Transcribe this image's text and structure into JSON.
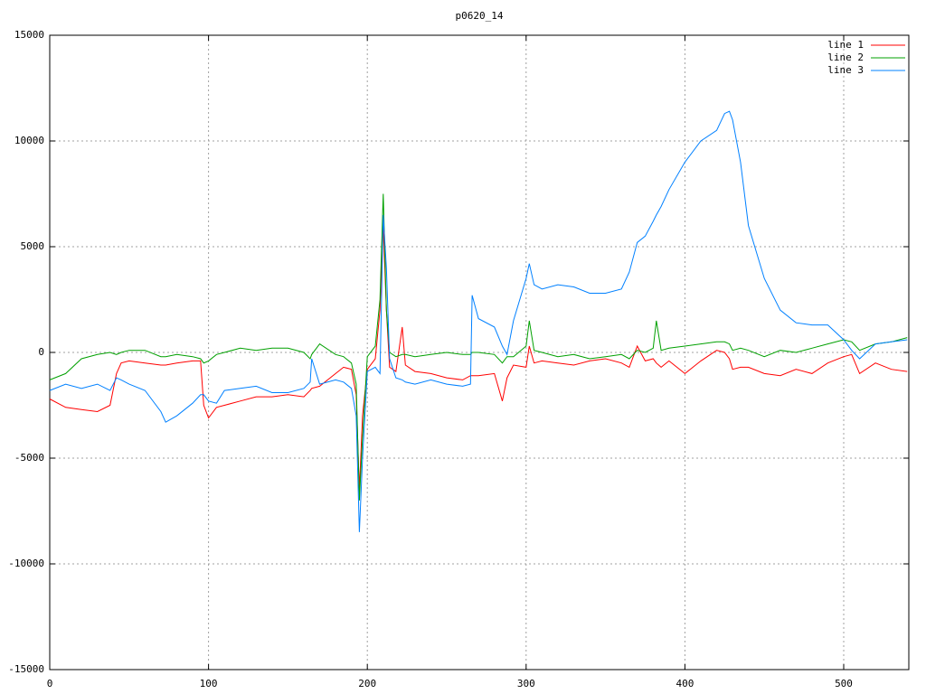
{
  "chart_data": {
    "type": "line",
    "title": "p0620_14",
    "x": [
      0,
      10,
      20,
      30,
      38,
      42,
      45,
      50,
      60,
      70,
      73,
      80,
      90,
      95,
      97,
      100,
      105,
      110,
      120,
      130,
      140,
      150,
      160,
      164,
      165,
      170,
      180,
      185,
      190,
      193,
      195,
      197,
      200,
      205,
      208,
      210,
      212,
      214,
      218,
      222,
      224,
      230,
      240,
      250,
      260,
      265,
      266,
      270,
      280,
      285,
      288,
      292,
      300,
      302,
      305,
      310,
      320,
      330,
      340,
      350,
      360,
      365,
      370,
      375,
      380,
      382,
      385,
      390,
      400,
      410,
      420,
      425,
      428,
      430,
      435,
      440,
      450,
      460,
      470,
      480,
      490,
      500,
      505,
      510,
      520,
      530,
      540
    ],
    "series": [
      {
        "name": "line 1",
        "color": "#ff0000",
        "values": [
          -2200,
          -2600,
          -2700,
          -2800,
          -2500,
          -1000,
          -500,
          -400,
          -500,
          -600,
          -600,
          -500,
          -400,
          -400,
          -2500,
          -3100,
          -2600,
          -2500,
          -2300,
          -2100,
          -2100,
          -2000,
          -2100,
          -1800,
          -1700,
          -1600,
          -1000,
          -700,
          -800,
          -2000,
          -6500,
          -3000,
          -800,
          -300,
          2000,
          6000,
          2000,
          -700,
          -900,
          1200,
          -600,
          -900,
          -1000,
          -1200,
          -1300,
          -1100,
          -1100,
          -1100,
          -1000,
          -2300,
          -1200,
          -600,
          -700,
          300,
          -500,
          -400,
          -500,
          -600,
          -400,
          -300,
          -500,
          -700,
          300,
          -400,
          -300,
          -500,
          -700,
          -400,
          -1000,
          -400,
          100,
          0,
          -300,
          -800,
          -700,
          -700,
          -1000,
          -1100,
          -800,
          -1000,
          -500,
          -200,
          -100,
          -1000,
          -500,
          -800,
          -900
        ]
      },
      {
        "name": "line 2",
        "color": "#00a000",
        "values": [
          -1300,
          -1000,
          -300,
          -100,
          0,
          -100,
          0,
          100,
          100,
          -200,
          -200,
          -100,
          -200,
          -300,
          -500,
          -400,
          -100,
          0,
          200,
          100,
          200,
          200,
          0,
          -300,
          -100,
          400,
          -100,
          -200,
          -500,
          -1500,
          -7000,
          -4000,
          -200,
          300,
          2500,
          7500,
          2000,
          0,
          -200,
          -100,
          -100,
          -200,
          -100,
          0,
          -100,
          -100,
          0,
          0,
          -100,
          -500,
          -200,
          -200,
          300,
          1500,
          100,
          0,
          -200,
          -100,
          -300,
          -200,
          -100,
          -300,
          100,
          0,
          200,
          1500,
          100,
          200,
          300,
          400,
          500,
          500,
          400,
          100,
          200,
          100,
          -200,
          100,
          0,
          200,
          400,
          600,
          500,
          100,
          400,
          500,
          700
        ]
      },
      {
        "name": "line 3",
        "color": "#0080ff",
        "values": [
          -1800,
          -1500,
          -1700,
          -1500,
          -1800,
          -1200,
          -1300,
          -1500,
          -1800,
          -2800,
          -3300,
          -3000,
          -2400,
          -2000,
          -2000,
          -2300,
          -2400,
          -1800,
          -1700,
          -1600,
          -1900,
          -1900,
          -1700,
          -1400,
          -300,
          -1500,
          -1300,
          -1400,
          -1700,
          -3000,
          -8500,
          -5000,
          -900,
          -700,
          -1000,
          6500,
          4000,
          -300,
          -1200,
          -1300,
          -1400,
          -1500,
          -1300,
          -1500,
          -1600,
          -1500,
          2700,
          1600,
          1200,
          300,
          -100,
          1500,
          3500,
          4200,
          3200,
          3000,
          3200,
          3100,
          2800,
          2800,
          3000,
          3800,
          5200,
          5500,
          6200,
          6500,
          6900,
          7700,
          9000,
          10000,
          10500,
          11300,
          11400,
          11000,
          9000,
          6000,
          3500,
          2000,
          1400,
          1300,
          1300,
          600,
          100,
          -300,
          400,
          500,
          600
        ]
      }
    ],
    "xlim": [
      0,
      541
    ],
    "xticks": [
      0,
      100,
      200,
      300,
      400,
      500
    ],
    "ylim": [
      -15000,
      15000
    ],
    "yticks": [
      -15000,
      -10000,
      -5000,
      0,
      5000,
      10000,
      15000
    ],
    "grid": true,
    "legend": "top-right"
  }
}
